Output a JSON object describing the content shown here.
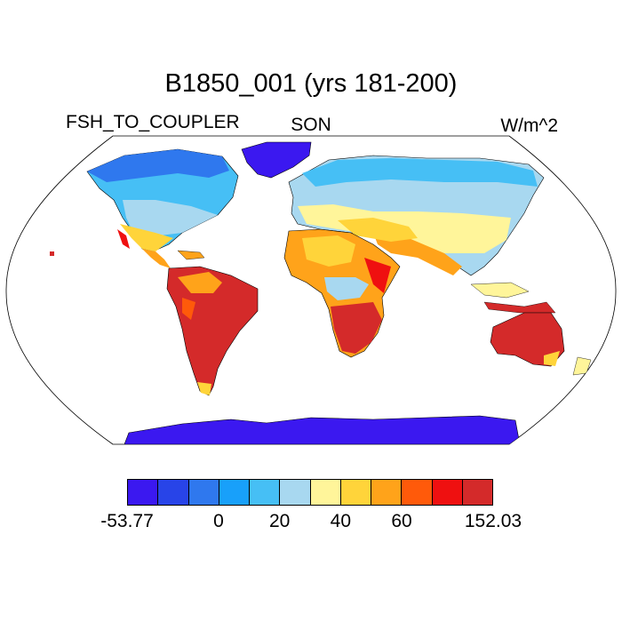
{
  "title": "B1850_001 (yrs 181-200)",
  "variable": "FSH_TO_COUPLER",
  "season": "SON",
  "units": "W/m^2",
  "colorbar": {
    "colors": [
      "#3b18f0",
      "#2844e8",
      "#2f78ee",
      "#18a0fa",
      "#46bff5",
      "#a8d8f0",
      "#fff59a",
      "#ffd43a",
      "#ffa31a",
      "#ff5a0a",
      "#ef1010",
      "#d42a2a"
    ],
    "tick_labels": [
      {
        "text": "-53.77",
        "index": 0
      },
      {
        "text": "0",
        "index": 3
      },
      {
        "text": "20",
        "index": 5
      },
      {
        "text": "40",
        "index": 7
      },
      {
        "text": "60",
        "index": 9
      },
      {
        "text": "152.03",
        "index": 12
      }
    ]
  }
}
